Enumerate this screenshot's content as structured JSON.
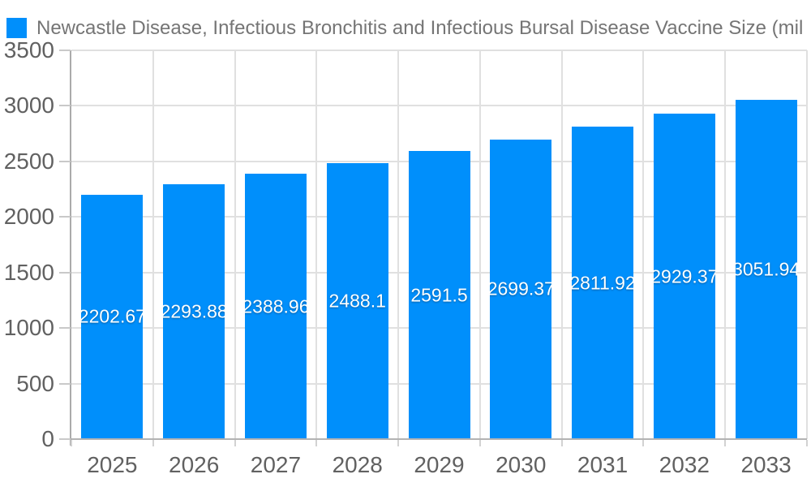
{
  "chart": {
    "title": "Newcastle Disease, Infectious Bronchitis and Infectious Bursal Disease Vaccine Size (mil",
    "legend_marker_color": "#008FFB"
  },
  "chart_data": {
    "type": "bar",
    "title": "Newcastle Disease, Infectious Bronchitis and Infectious Bursal Disease Vaccine Size (mil",
    "categories": [
      "2025",
      "2026",
      "2027",
      "2028",
      "2029",
      "2030",
      "2031",
      "2032",
      "2033"
    ],
    "values": [
      2202.67,
      2293.88,
      2388.96,
      2488.1,
      2591.5,
      2699.37,
      2811.92,
      2929.37,
      3051.94
    ],
    "value_labels": [
      "2202.67",
      "2293.88",
      "2388.96",
      "2488.1",
      "2591.5",
      "2699.37",
      "2811.92",
      "2929.37",
      "3051.94"
    ],
    "xlabel": "",
    "ylabel": "",
    "ylim": [
      0,
      3500
    ],
    "y_ticks": [
      0,
      500,
      1000,
      1500,
      2000,
      2500,
      3000,
      3500
    ],
    "grid": true,
    "legend_position": "top-left",
    "colors": {
      "bar": "#008FFB",
      "grid": "#e0e0e0",
      "axis": "#b3b3b3",
      "axis_label": "#616161",
      "title": "#757575",
      "value_label": "#ffffff",
      "background": "#ffffff"
    }
  }
}
